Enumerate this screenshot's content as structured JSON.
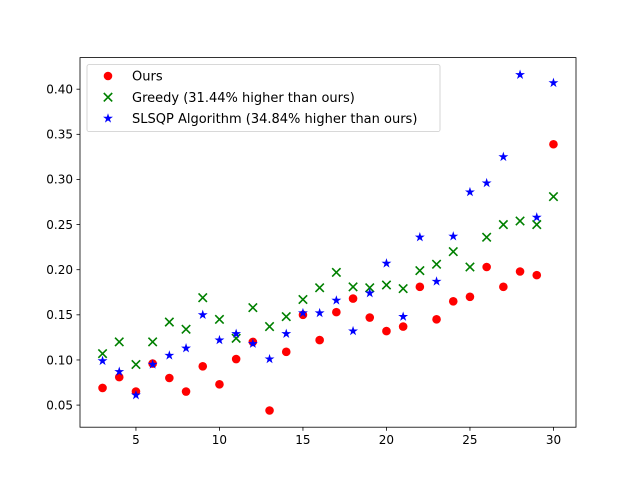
{
  "chart_data": {
    "type": "scatter",
    "title": "",
    "xlabel": "",
    "ylabel": "",
    "xlim": [
      1.65,
      31.35
    ],
    "ylim": [
      0.0255,
      0.435
    ],
    "xticks": [
      5,
      10,
      15,
      20,
      25,
      30
    ],
    "yticks": [
      0.05,
      0.1,
      0.15,
      0.2,
      0.25,
      0.3,
      0.35,
      0.4
    ],
    "grid": false,
    "legend_position": "top-left",
    "x": [
      3,
      4,
      5,
      6,
      7,
      8,
      9,
      10,
      11,
      12,
      13,
      14,
      15,
      16,
      17,
      18,
      19,
      20,
      21,
      22,
      23,
      24,
      25,
      26,
      27,
      28,
      29,
      30
    ],
    "series": [
      {
        "name": "Ours",
        "marker": "circle",
        "color": "#ff0000",
        "values": [
          0.069,
          0.081,
          0.065,
          0.096,
          0.08,
          0.065,
          0.093,
          0.073,
          0.101,
          0.12,
          0.044,
          0.109,
          0.15,
          0.122,
          0.153,
          0.168,
          0.147,
          0.132,
          0.137,
          0.181,
          0.145,
          0.165,
          0.17,
          0.203,
          0.181,
          0.198,
          0.194,
          0.339
        ]
      },
      {
        "name": "Greedy (31.44% higher than ours)",
        "marker": "x",
        "color": "#008000",
        "values": [
          0.107,
          0.12,
          0.095,
          0.12,
          0.142,
          0.134,
          0.169,
          0.145,
          0.124,
          0.158,
          0.137,
          0.148,
          0.167,
          0.18,
          0.197,
          0.181,
          0.18,
          0.183,
          0.179,
          0.199,
          0.206,
          0.22,
          0.203,
          0.236,
          0.25,
          0.254,
          0.25,
          0.281
        ]
      },
      {
        "name": "SLSQP Algorithm (34.84% higher than ours)",
        "marker": "star",
        "color": "#0000ff",
        "values": [
          0.099,
          0.087,
          0.061,
          0.095,
          0.105,
          0.113,
          0.15,
          0.122,
          0.129,
          0.118,
          0.101,
          0.129,
          0.152,
          0.152,
          0.166,
          0.132,
          0.174,
          0.207,
          0.148,
          0.236,
          0.187,
          0.237,
          0.286,
          0.296,
          0.325,
          0.416,
          0.258,
          0.407
        ]
      }
    ]
  }
}
